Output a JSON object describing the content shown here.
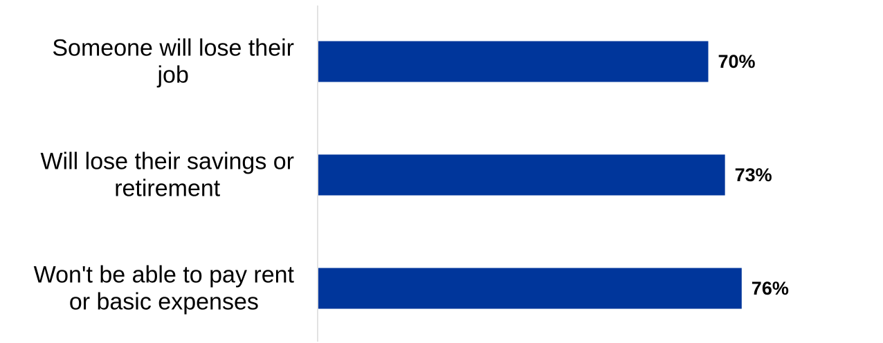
{
  "chart_data": {
    "type": "bar",
    "orientation": "horizontal",
    "categories": [
      "Someone will lose their job",
      "Will lose their savings or retirement",
      "Won't be able to pay rent or basic expenses"
    ],
    "category_label_lines": [
      [
        "Someone will lose their",
        "job"
      ],
      [
        "Will lose their savings or",
        "retirement"
      ],
      [
        "Won't be able to pay rent",
        "or basic expenses"
      ]
    ],
    "values": [
      70,
      73,
      76
    ],
    "data_labels": [
      "70%",
      "73%",
      "76%"
    ],
    "value_unit": "%",
    "title": "",
    "xlabel": "",
    "ylabel": "",
    "xlim": [
      0,
      100
    ],
    "grid": false,
    "legend": "none",
    "bar_color": "#00369B",
    "axis_color": "#D9D9D9"
  }
}
